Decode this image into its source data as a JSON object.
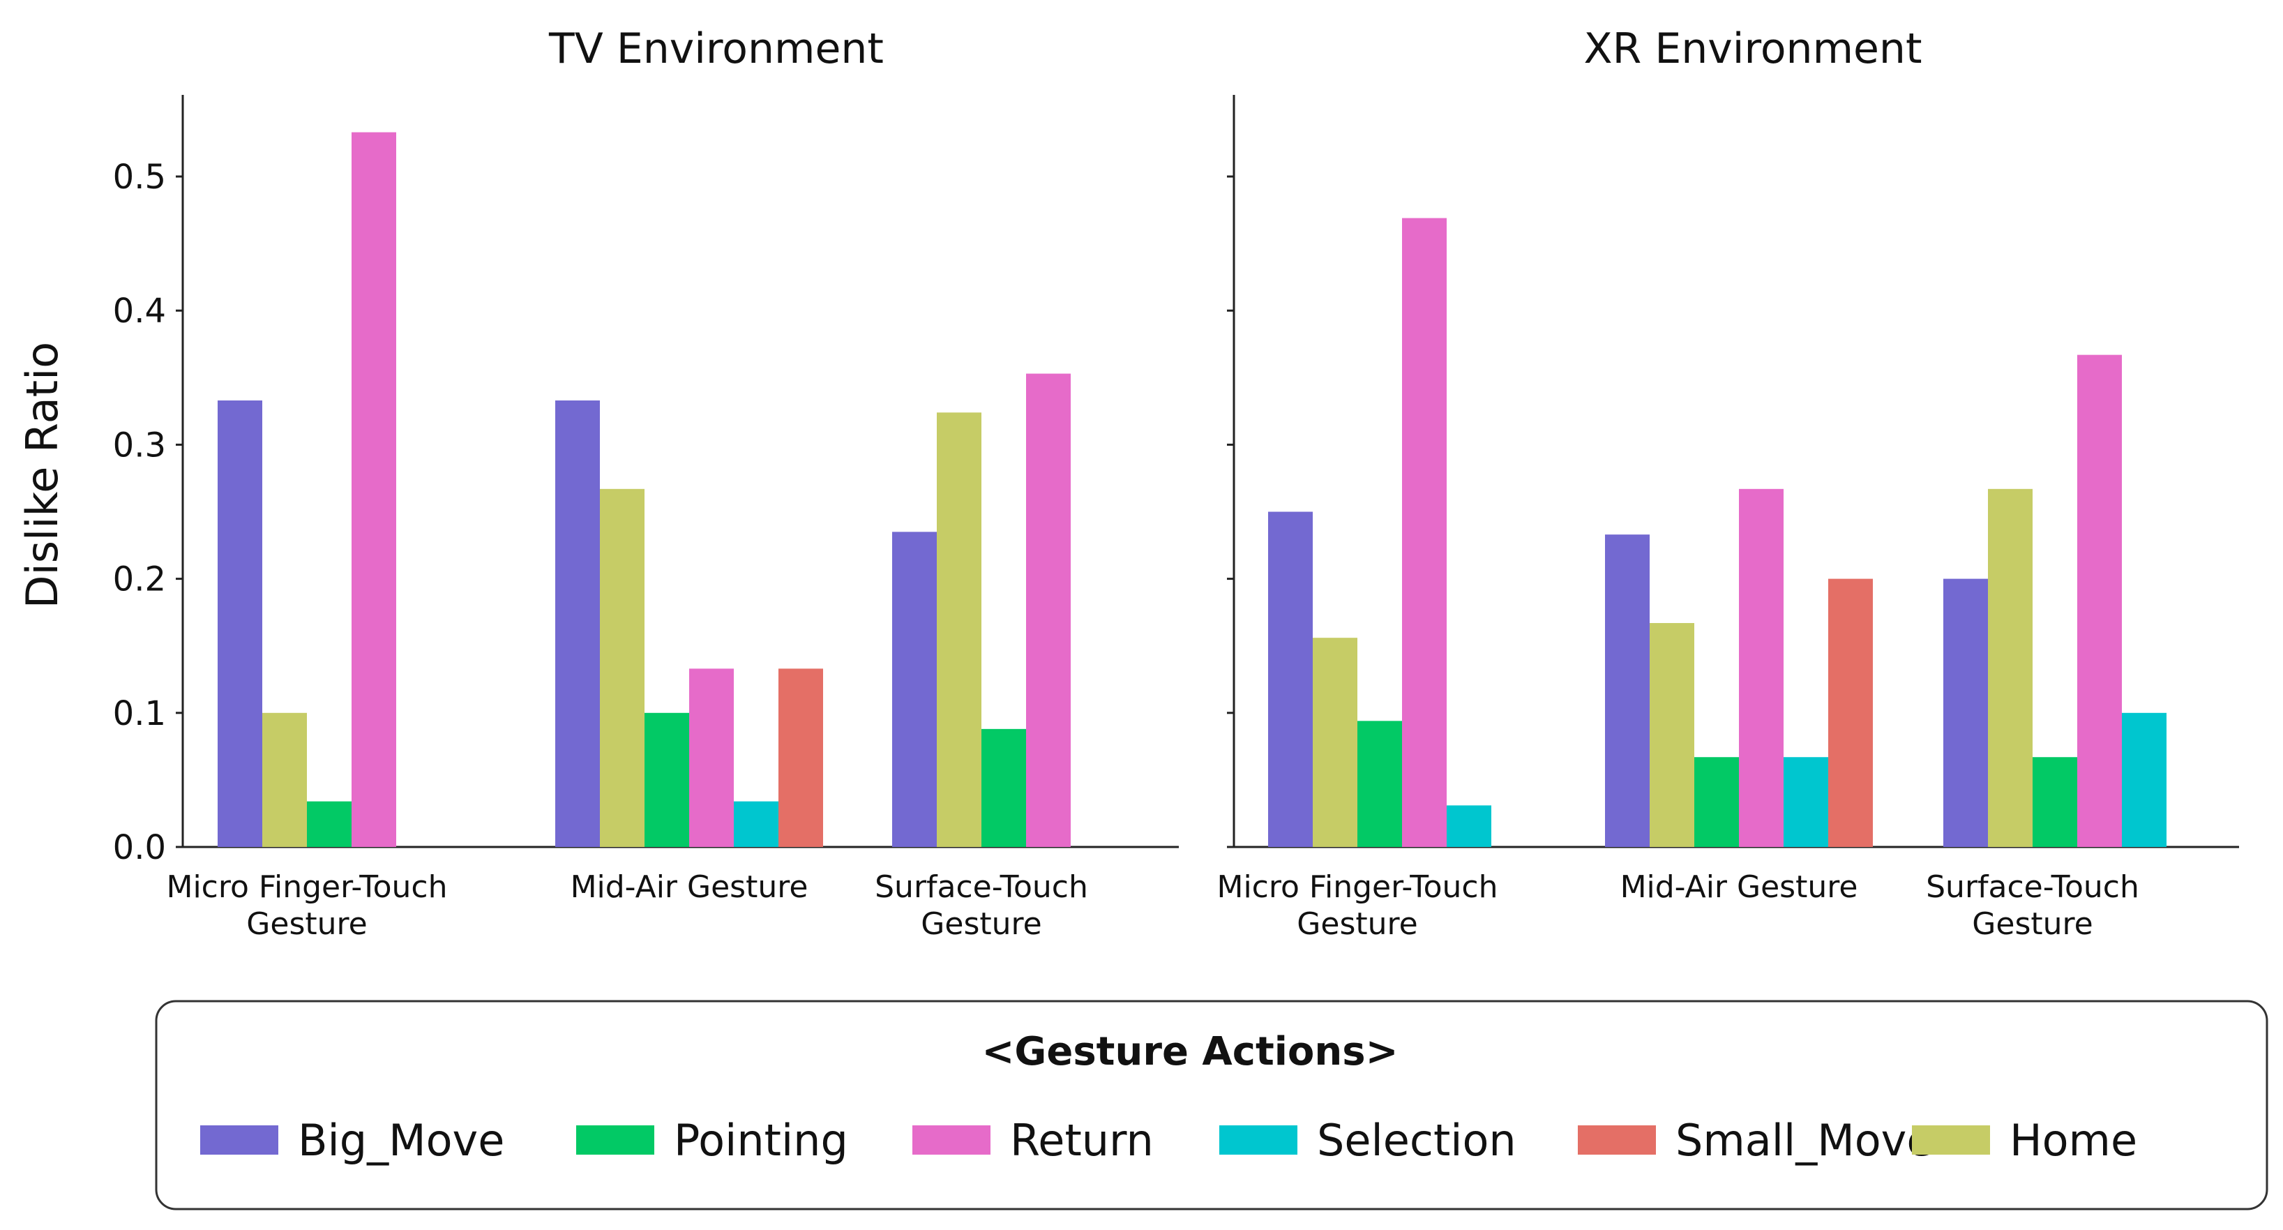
{
  "chart_data": [
    {
      "type": "bar",
      "title": "TV Environment",
      "ylabel": "Dislike Ratio",
      "xlabel": "",
      "ylim": [
        0,
        0.56
      ],
      "yticks": [
        "0.0",
        "0.1",
        "0.2",
        "0.3",
        "0.4",
        "0.5"
      ],
      "categories": [
        [
          "Micro Finger-Touch",
          "Gesture"
        ],
        [
          "Mid-Air Gesture"
        ],
        [
          "Surface-Touch",
          "Gesture"
        ]
      ],
      "groups": [
        {
          "bars": [
            {
              "series": "Big_Move",
              "value": 0.333
            },
            {
              "series": "Home",
              "value": 0.1
            },
            {
              "series": "Pointing",
              "value": 0.034
            },
            {
              "series": "Return",
              "value": 0.533
            }
          ]
        },
        {
          "bars": [
            {
              "series": "Big_Move",
              "value": 0.333
            },
            {
              "series": "Home",
              "value": 0.267
            },
            {
              "series": "Pointing",
              "value": 0.1
            },
            {
              "series": "Return",
              "value": 0.133
            },
            {
              "series": "Selection",
              "value": 0.034
            },
            {
              "series": "Small_Move",
              "value": 0.133
            }
          ]
        },
        {
          "bars": [
            {
              "series": "Big_Move",
              "value": 0.235
            },
            {
              "series": "Home",
              "value": 0.324
            },
            {
              "series": "Pointing",
              "value": 0.088
            },
            {
              "series": "Return",
              "value": 0.353
            }
          ]
        }
      ]
    },
    {
      "type": "bar",
      "title": "XR Environment",
      "ylabel": "",
      "xlabel": "",
      "ylim": [
        0,
        0.56
      ],
      "yticks": [],
      "categories": [
        [
          "Micro Finger-Touch",
          "Gesture"
        ],
        [
          "Mid-Air Gesture"
        ],
        [
          "Surface-Touch",
          "Gesture"
        ]
      ],
      "groups": [
        {
          "bars": [
            {
              "series": "Big_Move",
              "value": 0.25
            },
            {
              "series": "Home",
              "value": 0.156
            },
            {
              "series": "Pointing",
              "value": 0.094
            },
            {
              "series": "Return",
              "value": 0.469
            },
            {
              "series": "Selection",
              "value": 0.031
            }
          ]
        },
        {
          "bars": [
            {
              "series": "Big_Move",
              "value": 0.233
            },
            {
              "series": "Home",
              "value": 0.167
            },
            {
              "series": "Pointing",
              "value": 0.067
            },
            {
              "series": "Return",
              "value": 0.267
            },
            {
              "series": "Selection",
              "value": 0.067
            },
            {
              "series": "Small_Move",
              "value": 0.2
            }
          ]
        },
        {
          "bars": [
            {
              "series": "Big_Move",
              "value": 0.2
            },
            {
              "series": "Home",
              "value": 0.267
            },
            {
              "series": "Pointing",
              "value": 0.067
            },
            {
              "series": "Return",
              "value": 0.367
            },
            {
              "series": "Selection",
              "value": 0.1
            }
          ]
        }
      ]
    }
  ],
  "legend": {
    "title": "<Gesture Actions>",
    "items": [
      {
        "name": "Big_Move",
        "color": "#7369d1"
      },
      {
        "name": "Pointing",
        "color": "#02c965"
      },
      {
        "name": "Return",
        "color": "#e66bc9"
      },
      {
        "name": "Selection",
        "color": "#00c6cf"
      },
      {
        "name": "Small_Move",
        "color": "#e46f66"
      },
      {
        "name": "Home",
        "color": "#c6cc66"
      }
    ]
  }
}
